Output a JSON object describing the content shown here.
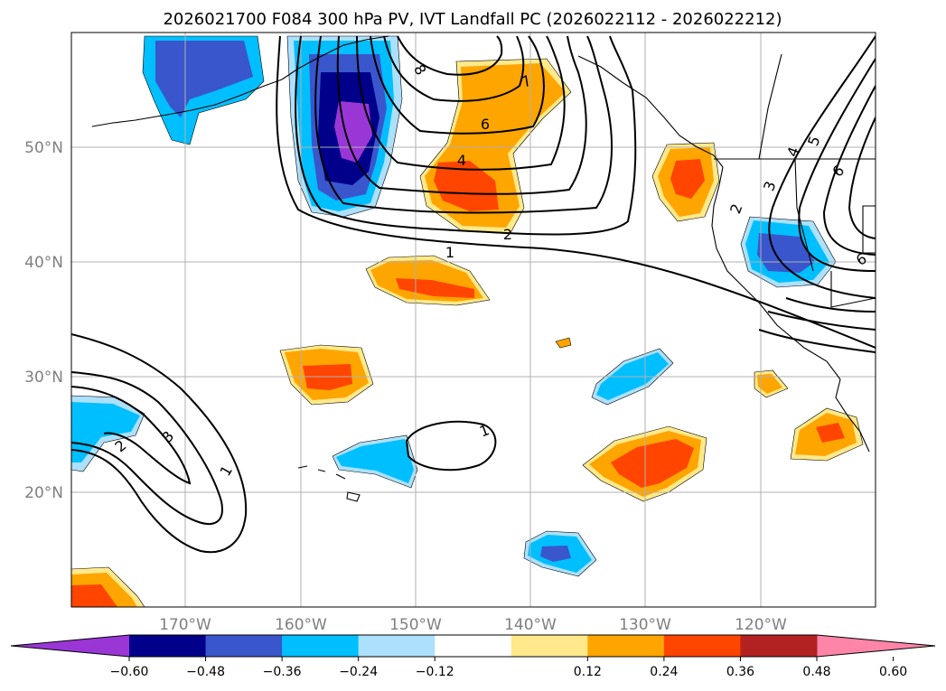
{
  "title": "2026021700 F084 300 hPa PV, IVT Landfall PC (2026022112 - 2026022212)",
  "axes": {
    "lon_labels": [
      "170°W",
      "160°W",
      "150°W",
      "140°W",
      "130°W",
      "120°W"
    ],
    "lat_labels": [
      "50°N",
      "40°N",
      "30°N",
      "20°N"
    ]
  },
  "colorbar": {
    "ticks": [
      "−0.60",
      "−0.48",
      "−0.36",
      "−0.24",
      "−0.12",
      "0.12",
      "0.24",
      "0.36",
      "0.48",
      "0.60"
    ],
    "colors": [
      "#9a36d6",
      "#00008b",
      "#3a56cc",
      "#00bfff",
      "#ade0fc",
      "#ffffff",
      "#ffe98a",
      "#ffa500",
      "#ff4500",
      "#b22222",
      "#ff85a8"
    ]
  },
  "contour_labels": [
    "8",
    "7",
    "6",
    "4",
    "2",
    "1",
    "1",
    "1",
    "2",
    "3",
    "2",
    "3",
    "4",
    "5",
    "6",
    "6"
  ]
}
